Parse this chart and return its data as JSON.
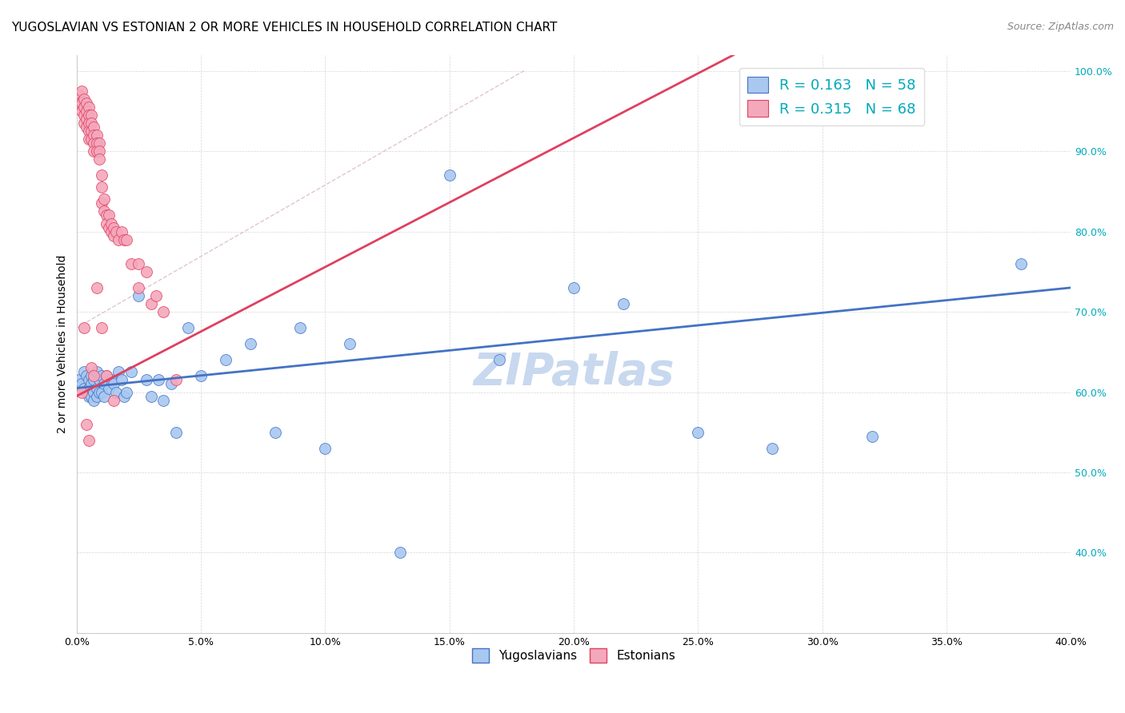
{
  "title": "YUGOSLAVIAN VS ESTONIAN 2 OR MORE VEHICLES IN HOUSEHOLD CORRELATION CHART",
  "source": "Source: ZipAtlas.com",
  "ylabel": "2 or more Vehicles in Household",
  "watermark": "ZIPatlas",
  "xlim": [
    0.0,
    0.4
  ],
  "ylim": [
    0.3,
    1.02
  ],
  "xticks": [
    0.0,
    0.05,
    0.1,
    0.15,
    0.2,
    0.25,
    0.3,
    0.35,
    0.4
  ],
  "yticks": [
    0.4,
    0.5,
    0.6,
    0.7,
    0.8,
    0.9,
    1.0
  ],
  "ytick_labels_right": [
    "40.0%",
    "50.0%",
    "60.0%",
    "70.0%",
    "80.0%",
    "90.0%",
    "100.0%"
  ],
  "xtick_labels": [
    "0.0%",
    "5.0%",
    "10.0%",
    "15.0%",
    "20.0%",
    "25.0%",
    "30.0%",
    "35.0%",
    "40.0%"
  ],
  "color_yug": "#A8C8F0",
  "color_est": "#F4A8BC",
  "color_trendline_yug": "#4472C4",
  "color_trendline_est": "#E04060",
  "color_diagonal": "#D8B8C0",
  "color_watermark": "#C8D8EE",
  "color_right_tick": "#00AABB",
  "title_fontsize": 11,
  "axis_label_fontsize": 10,
  "tick_fontsize": 9,
  "legend_fontsize": 13,
  "watermark_fontsize": 40,
  "source_fontsize": 9,
  "yug_x": [
    0.001,
    0.002,
    0.003,
    0.003,
    0.004,
    0.004,
    0.005,
    0.005,
    0.005,
    0.006,
    0.006,
    0.006,
    0.007,
    0.007,
    0.007,
    0.008,
    0.008,
    0.008,
    0.009,
    0.009,
    0.01,
    0.01,
    0.011,
    0.011,
    0.012,
    0.013,
    0.014,
    0.015,
    0.016,
    0.017,
    0.018,
    0.019,
    0.02,
    0.022,
    0.025,
    0.028,
    0.03,
    0.033,
    0.035,
    0.038,
    0.04,
    0.045,
    0.05,
    0.06,
    0.07,
    0.08,
    0.09,
    0.1,
    0.11,
    0.13,
    0.15,
    0.17,
    0.2,
    0.22,
    0.25,
    0.28,
    0.32,
    0.38
  ],
  "yug_y": [
    0.615,
    0.61,
    0.605,
    0.625,
    0.6,
    0.62,
    0.595,
    0.615,
    0.605,
    0.61,
    0.595,
    0.62,
    0.6,
    0.615,
    0.59,
    0.605,
    0.625,
    0.595,
    0.6,
    0.615,
    0.62,
    0.6,
    0.61,
    0.595,
    0.62,
    0.605,
    0.615,
    0.61,
    0.6,
    0.625,
    0.615,
    0.595,
    0.6,
    0.625,
    0.72,
    0.615,
    0.595,
    0.615,
    0.59,
    0.61,
    0.55,
    0.68,
    0.62,
    0.64,
    0.66,
    0.55,
    0.68,
    0.53,
    0.66,
    0.4,
    0.87,
    0.64,
    0.73,
    0.71,
    0.55,
    0.53,
    0.545,
    0.76
  ],
  "est_x": [
    0.001,
    0.001,
    0.002,
    0.002,
    0.002,
    0.003,
    0.003,
    0.003,
    0.003,
    0.004,
    0.004,
    0.004,
    0.004,
    0.005,
    0.005,
    0.005,
    0.005,
    0.005,
    0.006,
    0.006,
    0.006,
    0.006,
    0.007,
    0.007,
    0.007,
    0.007,
    0.008,
    0.008,
    0.008,
    0.009,
    0.009,
    0.009,
    0.01,
    0.01,
    0.01,
    0.011,
    0.011,
    0.012,
    0.012,
    0.013,
    0.013,
    0.014,
    0.014,
    0.015,
    0.015,
    0.016,
    0.017,
    0.018,
    0.019,
    0.02,
    0.022,
    0.025,
    0.025,
    0.028,
    0.03,
    0.032,
    0.035,
    0.04,
    0.002,
    0.003,
    0.004,
    0.005,
    0.006,
    0.007,
    0.008,
    0.01,
    0.012,
    0.015
  ],
  "est_y": [
    0.97,
    0.96,
    0.975,
    0.96,
    0.95,
    0.965,
    0.955,
    0.945,
    0.935,
    0.96,
    0.95,
    0.94,
    0.93,
    0.955,
    0.945,
    0.935,
    0.925,
    0.915,
    0.945,
    0.935,
    0.925,
    0.915,
    0.93,
    0.92,
    0.91,
    0.9,
    0.92,
    0.91,
    0.9,
    0.91,
    0.9,
    0.89,
    0.835,
    0.87,
    0.855,
    0.825,
    0.84,
    0.82,
    0.81,
    0.82,
    0.805,
    0.81,
    0.8,
    0.805,
    0.795,
    0.8,
    0.79,
    0.8,
    0.79,
    0.79,
    0.76,
    0.73,
    0.76,
    0.75,
    0.71,
    0.72,
    0.7,
    0.615,
    0.6,
    0.68,
    0.56,
    0.54,
    0.63,
    0.62,
    0.73,
    0.68,
    0.62,
    0.59
  ]
}
